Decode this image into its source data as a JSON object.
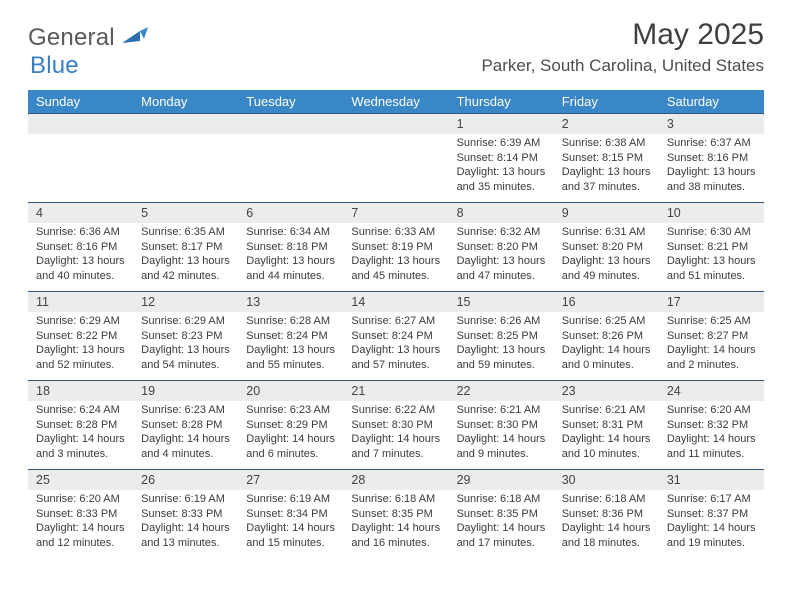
{
  "brand": {
    "name1": "General",
    "name2": "Blue",
    "accent": "#3a87c7"
  },
  "title": "May 2025",
  "location": "Parker, South Carolina, United States",
  "dayHeaders": [
    "Sunday",
    "Monday",
    "Tuesday",
    "Wednesday",
    "Thursday",
    "Friday",
    "Saturday"
  ],
  "colors": {
    "header_bg": "#3a87c7",
    "header_text": "#ffffff",
    "daynum_bg": "#ececec",
    "row_border": "#33557a",
    "text": "#3b3b3b"
  },
  "typography": {
    "title_fontsize": 30,
    "location_fontsize": 17,
    "header_fontsize": 13,
    "cell_fontsize": 11
  },
  "weeks": [
    [
      {},
      {},
      {},
      {},
      {
        "n": "1",
        "sr": "Sunrise: 6:39 AM",
        "ss": "Sunset: 8:14 PM",
        "d1": "Daylight: 13 hours",
        "d2": "and 35 minutes."
      },
      {
        "n": "2",
        "sr": "Sunrise: 6:38 AM",
        "ss": "Sunset: 8:15 PM",
        "d1": "Daylight: 13 hours",
        "d2": "and 37 minutes."
      },
      {
        "n": "3",
        "sr": "Sunrise: 6:37 AM",
        "ss": "Sunset: 8:16 PM",
        "d1": "Daylight: 13 hours",
        "d2": "and 38 minutes."
      }
    ],
    [
      {
        "n": "4",
        "sr": "Sunrise: 6:36 AM",
        "ss": "Sunset: 8:16 PM",
        "d1": "Daylight: 13 hours",
        "d2": "and 40 minutes."
      },
      {
        "n": "5",
        "sr": "Sunrise: 6:35 AM",
        "ss": "Sunset: 8:17 PM",
        "d1": "Daylight: 13 hours",
        "d2": "and 42 minutes."
      },
      {
        "n": "6",
        "sr": "Sunrise: 6:34 AM",
        "ss": "Sunset: 8:18 PM",
        "d1": "Daylight: 13 hours",
        "d2": "and 44 minutes."
      },
      {
        "n": "7",
        "sr": "Sunrise: 6:33 AM",
        "ss": "Sunset: 8:19 PM",
        "d1": "Daylight: 13 hours",
        "d2": "and 45 minutes."
      },
      {
        "n": "8",
        "sr": "Sunrise: 6:32 AM",
        "ss": "Sunset: 8:20 PM",
        "d1": "Daylight: 13 hours",
        "d2": "and 47 minutes."
      },
      {
        "n": "9",
        "sr": "Sunrise: 6:31 AM",
        "ss": "Sunset: 8:20 PM",
        "d1": "Daylight: 13 hours",
        "d2": "and 49 minutes."
      },
      {
        "n": "10",
        "sr": "Sunrise: 6:30 AM",
        "ss": "Sunset: 8:21 PM",
        "d1": "Daylight: 13 hours",
        "d2": "and 51 minutes."
      }
    ],
    [
      {
        "n": "11",
        "sr": "Sunrise: 6:29 AM",
        "ss": "Sunset: 8:22 PM",
        "d1": "Daylight: 13 hours",
        "d2": "and 52 minutes."
      },
      {
        "n": "12",
        "sr": "Sunrise: 6:29 AM",
        "ss": "Sunset: 8:23 PM",
        "d1": "Daylight: 13 hours",
        "d2": "and 54 minutes."
      },
      {
        "n": "13",
        "sr": "Sunrise: 6:28 AM",
        "ss": "Sunset: 8:24 PM",
        "d1": "Daylight: 13 hours",
        "d2": "and 55 minutes."
      },
      {
        "n": "14",
        "sr": "Sunrise: 6:27 AM",
        "ss": "Sunset: 8:24 PM",
        "d1": "Daylight: 13 hours",
        "d2": "and 57 minutes."
      },
      {
        "n": "15",
        "sr": "Sunrise: 6:26 AM",
        "ss": "Sunset: 8:25 PM",
        "d1": "Daylight: 13 hours",
        "d2": "and 59 minutes."
      },
      {
        "n": "16",
        "sr": "Sunrise: 6:25 AM",
        "ss": "Sunset: 8:26 PM",
        "d1": "Daylight: 14 hours",
        "d2": "and 0 minutes."
      },
      {
        "n": "17",
        "sr": "Sunrise: 6:25 AM",
        "ss": "Sunset: 8:27 PM",
        "d1": "Daylight: 14 hours",
        "d2": "and 2 minutes."
      }
    ],
    [
      {
        "n": "18",
        "sr": "Sunrise: 6:24 AM",
        "ss": "Sunset: 8:28 PM",
        "d1": "Daylight: 14 hours",
        "d2": "and 3 minutes."
      },
      {
        "n": "19",
        "sr": "Sunrise: 6:23 AM",
        "ss": "Sunset: 8:28 PM",
        "d1": "Daylight: 14 hours",
        "d2": "and 4 minutes."
      },
      {
        "n": "20",
        "sr": "Sunrise: 6:23 AM",
        "ss": "Sunset: 8:29 PM",
        "d1": "Daylight: 14 hours",
        "d2": "and 6 minutes."
      },
      {
        "n": "21",
        "sr": "Sunrise: 6:22 AM",
        "ss": "Sunset: 8:30 PM",
        "d1": "Daylight: 14 hours",
        "d2": "and 7 minutes."
      },
      {
        "n": "22",
        "sr": "Sunrise: 6:21 AM",
        "ss": "Sunset: 8:30 PM",
        "d1": "Daylight: 14 hours",
        "d2": "and 9 minutes."
      },
      {
        "n": "23",
        "sr": "Sunrise: 6:21 AM",
        "ss": "Sunset: 8:31 PM",
        "d1": "Daylight: 14 hours",
        "d2": "and 10 minutes."
      },
      {
        "n": "24",
        "sr": "Sunrise: 6:20 AM",
        "ss": "Sunset: 8:32 PM",
        "d1": "Daylight: 14 hours",
        "d2": "and 11 minutes."
      }
    ],
    [
      {
        "n": "25",
        "sr": "Sunrise: 6:20 AM",
        "ss": "Sunset: 8:33 PM",
        "d1": "Daylight: 14 hours",
        "d2": "and 12 minutes."
      },
      {
        "n": "26",
        "sr": "Sunrise: 6:19 AM",
        "ss": "Sunset: 8:33 PM",
        "d1": "Daylight: 14 hours",
        "d2": "and 13 minutes."
      },
      {
        "n": "27",
        "sr": "Sunrise: 6:19 AM",
        "ss": "Sunset: 8:34 PM",
        "d1": "Daylight: 14 hours",
        "d2": "and 15 minutes."
      },
      {
        "n": "28",
        "sr": "Sunrise: 6:18 AM",
        "ss": "Sunset: 8:35 PM",
        "d1": "Daylight: 14 hours",
        "d2": "and 16 minutes."
      },
      {
        "n": "29",
        "sr": "Sunrise: 6:18 AM",
        "ss": "Sunset: 8:35 PM",
        "d1": "Daylight: 14 hours",
        "d2": "and 17 minutes."
      },
      {
        "n": "30",
        "sr": "Sunrise: 6:18 AM",
        "ss": "Sunset: 8:36 PM",
        "d1": "Daylight: 14 hours",
        "d2": "and 18 minutes."
      },
      {
        "n": "31",
        "sr": "Sunrise: 6:17 AM",
        "ss": "Sunset: 8:37 PM",
        "d1": "Daylight: 14 hours",
        "d2": "and 19 minutes."
      }
    ]
  ]
}
